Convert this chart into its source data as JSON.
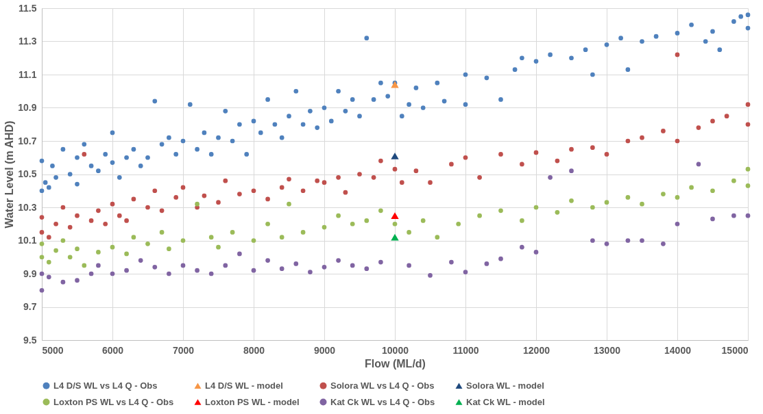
{
  "chart_data": {
    "type": "scatter",
    "xlabel": "Flow (ML/d)",
    "ylabel": "Water Level (m AHD)",
    "xlim": [
      5000,
      15000
    ],
    "xticks": [
      5000,
      6000,
      7000,
      8000,
      9000,
      10000,
      11000,
      12000,
      13000,
      14000,
      15000
    ],
    "ylim": [
      9.5,
      11.5
    ],
    "yticks": [
      9.5,
      9.7,
      9.9,
      10.1,
      10.3,
      10.5,
      10.7,
      10.9,
      11.1,
      11.3,
      11.5
    ],
    "grid": true,
    "legend": "bottom",
    "series": [
      {
        "name": "L4 D/S WL vs L4 Q - Obs",
        "color": "#4f81bd",
        "marker": "circle",
        "x": [
          5000,
          5000,
          5050,
          5100,
          5150,
          5200,
          5300,
          5400,
          5500,
          5500,
          5600,
          5700,
          5800,
          5900,
          6000,
          6000,
          6100,
          6200,
          6300,
          6400,
          6500,
          6600,
          6700,
          6800,
          6900,
          7000,
          7100,
          7200,
          7300,
          7400,
          7500,
          7600,
          7700,
          7800,
          7900,
          8000,
          8100,
          8200,
          8300,
          8400,
          8500,
          8600,
          8700,
          8800,
          8900,
          9000,
          9100,
          9200,
          9300,
          9400,
          9500,
          9600,
          9700,
          9800,
          9900,
          10000,
          10100,
          10200,
          10300,
          10400,
          10600,
          10700,
          11000,
          11000,
          11300,
          11500,
          11700,
          11800,
          12000,
          12200,
          12500,
          12700,
          12800,
          13000,
          13200,
          13300,
          13500,
          13700,
          14000,
          14200,
          14400,
          14500,
          14600,
          14800,
          14900,
          15000,
          15000
        ],
        "values": [
          10.4,
          10.58,
          10.45,
          10.42,
          10.55,
          10.48,
          10.65,
          10.5,
          10.6,
          10.44,
          10.68,
          10.55,
          10.52,
          10.62,
          10.57,
          10.75,
          10.48,
          10.6,
          10.65,
          10.55,
          10.6,
          10.94,
          10.68,
          10.72,
          10.62,
          10.7,
          10.92,
          10.65,
          10.75,
          10.62,
          10.72,
          10.88,
          10.7,
          10.8,
          10.62,
          10.82,
          10.75,
          10.95,
          10.8,
          10.72,
          10.85,
          11.0,
          10.8,
          10.88,
          10.78,
          10.9,
          10.82,
          11.0,
          10.88,
          10.95,
          10.85,
          11.32,
          10.95,
          11.05,
          10.97,
          11.05,
          10.85,
          10.92,
          11.02,
          10.9,
          11.05,
          10.94,
          11.1,
          10.92,
          11.08,
          10.95,
          11.13,
          11.2,
          11.18,
          11.22,
          11.2,
          11.25,
          11.1,
          11.28,
          11.32,
          11.13,
          11.3,
          11.33,
          11.35,
          11.4,
          11.3,
          11.36,
          11.25,
          11.42,
          11.45,
          11.38,
          11.46
        ]
      },
      {
        "name": "L4 D/S WL - model",
        "color": "#f79646",
        "marker": "triangle",
        "x": [
          10000
        ],
        "values": [
          11.04
        ]
      },
      {
        "name": "Solora WL vs L4 Q - Obs",
        "color": "#c0504d",
        "marker": "circle",
        "x": [
          5000,
          5000,
          5100,
          5200,
          5300,
          5400,
          5500,
          5600,
          5700,
          5800,
          5900,
          6000,
          6100,
          6200,
          6300,
          6500,
          6600,
          6700,
          6900,
          7000,
          7200,
          7300,
          7500,
          7600,
          7800,
          8000,
          8200,
          8400,
          8500,
          8700,
          8900,
          9000,
          9200,
          9300,
          9500,
          9700,
          9800,
          10000,
          10100,
          10300,
          10500,
          10800,
          11000,
          11200,
          11500,
          11800,
          12000,
          12300,
          12500,
          12800,
          13000,
          13300,
          13500,
          13800,
          14000,
          14000,
          14300,
          14500,
          14700,
          15000,
          15000
        ],
        "values": [
          10.15,
          10.24,
          10.12,
          10.2,
          10.3,
          10.18,
          10.25,
          10.62,
          10.22,
          10.28,
          10.2,
          10.32,
          10.25,
          10.22,
          10.35,
          10.3,
          10.4,
          10.28,
          10.36,
          10.42,
          10.3,
          10.37,
          10.33,
          10.46,
          10.38,
          10.4,
          10.35,
          10.42,
          10.47,
          10.4,
          10.46,
          10.45,
          10.48,
          10.39,
          10.5,
          10.48,
          10.58,
          10.53,
          10.45,
          10.52,
          10.45,
          10.56,
          10.6,
          10.48,
          10.62,
          10.56,
          10.63,
          10.58,
          10.65,
          10.66,
          10.62,
          10.7,
          10.72,
          10.76,
          10.7,
          11.22,
          10.78,
          10.82,
          10.85,
          10.8,
          10.92
        ]
      },
      {
        "name": "Solora WL - model",
        "color": "#1f497d",
        "marker": "triangle",
        "x": [
          10000
        ],
        "values": [
          10.61
        ]
      },
      {
        "name": "Loxton PS WL vs L4 Q - Obs",
        "color": "#9bbb59",
        "marker": "circle",
        "x": [
          5000,
          5000,
          5100,
          5200,
          5300,
          5400,
          5500,
          5600,
          5800,
          6000,
          6200,
          6300,
          6500,
          6700,
          6800,
          7000,
          7200,
          7400,
          7500,
          7700,
          8000,
          8200,
          8400,
          8500,
          8700,
          9000,
          9200,
          9400,
          9600,
          9800,
          10000,
          10200,
          10400,
          10600,
          10900,
          11200,
          11500,
          11800,
          12000,
          12300,
          12500,
          12800,
          13000,
          13300,
          13500,
          13800,
          14000,
          14200,
          14500,
          14800,
          15000,
          15000
        ],
        "values": [
          10.0,
          10.08,
          9.97,
          10.04,
          10.1,
          10.0,
          10.05,
          9.95,
          10.03,
          10.06,
          10.02,
          10.12,
          10.08,
          10.15,
          10.05,
          10.1,
          10.32,
          10.12,
          10.06,
          10.15,
          10.1,
          10.2,
          10.12,
          10.32,
          10.15,
          10.18,
          10.25,
          10.2,
          10.22,
          10.28,
          10.2,
          10.15,
          10.22,
          10.12,
          10.2,
          10.25,
          10.28,
          10.22,
          10.3,
          10.27,
          10.34,
          10.3,
          10.33,
          10.36,
          10.32,
          10.38,
          10.36,
          10.42,
          10.4,
          10.46,
          10.43,
          10.53
        ]
      },
      {
        "name": "Loxton PS WL - model",
        "color": "#ff0000",
        "marker": "triangle",
        "x": [
          10000
        ],
        "values": [
          10.25
        ]
      },
      {
        "name": "Kat Ck WL vs L4 Q - Obs",
        "color": "#8064a2",
        "marker": "circle",
        "x": [
          5000,
          5000,
          5100,
          5300,
          5500,
          5700,
          5800,
          6000,
          6200,
          6400,
          6600,
          6800,
          7000,
          7200,
          7400,
          7600,
          7800,
          8000,
          8200,
          8400,
          8600,
          8800,
          9000,
          9200,
          9400,
          9600,
          9800,
          10200,
          10500,
          10800,
          11000,
          11300,
          11500,
          11800,
          12000,
          12200,
          12500,
          12800,
          13000,
          13300,
          13500,
          13800,
          14000,
          14300,
          14500,
          14800,
          15000
        ],
        "values": [
          9.8,
          9.9,
          9.88,
          9.85,
          9.86,
          9.9,
          9.95,
          9.9,
          9.92,
          9.98,
          9.94,
          9.9,
          9.95,
          9.92,
          9.9,
          9.95,
          10.02,
          9.92,
          9.98,
          9.93,
          9.96,
          9.91,
          9.94,
          9.98,
          9.95,
          9.93,
          9.97,
          9.95,
          9.89,
          9.97,
          9.91,
          9.96,
          9.99,
          10.06,
          10.03,
          10.48,
          10.52,
          10.1,
          10.08,
          10.1,
          10.1,
          10.08,
          10.2,
          10.56,
          10.23,
          10.25,
          10.25
        ]
      },
      {
        "name": "Kat Ck WL - model",
        "color": "#00b050",
        "marker": "triangle",
        "x": [
          10000
        ],
        "values": [
          10.12
        ]
      }
    ]
  }
}
